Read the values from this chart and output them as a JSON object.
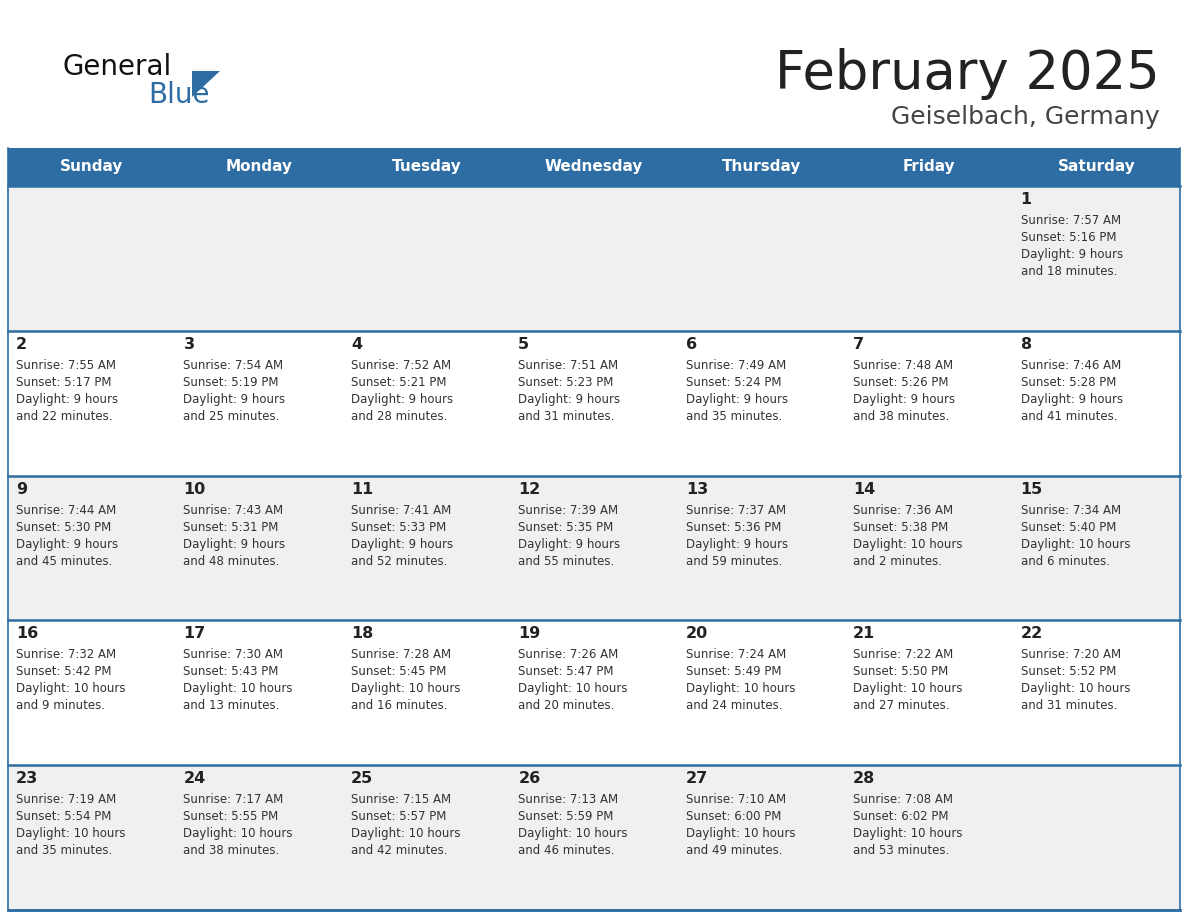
{
  "title": "February 2025",
  "subtitle": "Geiselbach, Germany",
  "days_of_week": [
    "Sunday",
    "Monday",
    "Tuesday",
    "Wednesday",
    "Thursday",
    "Friday",
    "Saturday"
  ],
  "header_bg": "#2E6DA4",
  "header_text": "#FFFFFF",
  "cell_bg_light": "#F0F0F0",
  "cell_bg_white": "#FFFFFF",
  "border_color": "#2E6DA4",
  "day_num_color": "#222222",
  "info_text_color": "#333333",
  "title_color": "#222222",
  "subtitle_color": "#444444",
  "logo_text1": "General",
  "logo_text2": "Blue",
  "logo_triangle_color": "#2E6DA4",
  "logo_black_color": "#111111",
  "calendar_data": [
    [
      {
        "day": null,
        "sunrise": null,
        "sunset": null,
        "daylight_h": null,
        "daylight_m": null
      },
      {
        "day": null,
        "sunrise": null,
        "sunset": null,
        "daylight_h": null,
        "daylight_m": null
      },
      {
        "day": null,
        "sunrise": null,
        "sunset": null,
        "daylight_h": null,
        "daylight_m": null
      },
      {
        "day": null,
        "sunrise": null,
        "sunset": null,
        "daylight_h": null,
        "daylight_m": null
      },
      {
        "day": null,
        "sunrise": null,
        "sunset": null,
        "daylight_h": null,
        "daylight_m": null
      },
      {
        "day": null,
        "sunrise": null,
        "sunset": null,
        "daylight_h": null,
        "daylight_m": null
      },
      {
        "day": 1,
        "sunrise": "7:57 AM",
        "sunset": "5:16 PM",
        "daylight_h": "9 hours",
        "daylight_m": "and 18 minutes."
      }
    ],
    [
      {
        "day": 2,
        "sunrise": "7:55 AM",
        "sunset": "5:17 PM",
        "daylight_h": "9 hours",
        "daylight_m": "and 22 minutes."
      },
      {
        "day": 3,
        "sunrise": "7:54 AM",
        "sunset": "5:19 PM",
        "daylight_h": "9 hours",
        "daylight_m": "and 25 minutes."
      },
      {
        "day": 4,
        "sunrise": "7:52 AM",
        "sunset": "5:21 PM",
        "daylight_h": "9 hours",
        "daylight_m": "and 28 minutes."
      },
      {
        "day": 5,
        "sunrise": "7:51 AM",
        "sunset": "5:23 PM",
        "daylight_h": "9 hours",
        "daylight_m": "and 31 minutes."
      },
      {
        "day": 6,
        "sunrise": "7:49 AM",
        "sunset": "5:24 PM",
        "daylight_h": "9 hours",
        "daylight_m": "and 35 minutes."
      },
      {
        "day": 7,
        "sunrise": "7:48 AM",
        "sunset": "5:26 PM",
        "daylight_h": "9 hours",
        "daylight_m": "and 38 minutes."
      },
      {
        "day": 8,
        "sunrise": "7:46 AM",
        "sunset": "5:28 PM",
        "daylight_h": "9 hours",
        "daylight_m": "and 41 minutes."
      }
    ],
    [
      {
        "day": 9,
        "sunrise": "7:44 AM",
        "sunset": "5:30 PM",
        "daylight_h": "9 hours",
        "daylight_m": "and 45 minutes."
      },
      {
        "day": 10,
        "sunrise": "7:43 AM",
        "sunset": "5:31 PM",
        "daylight_h": "9 hours",
        "daylight_m": "and 48 minutes."
      },
      {
        "day": 11,
        "sunrise": "7:41 AM",
        "sunset": "5:33 PM",
        "daylight_h": "9 hours",
        "daylight_m": "and 52 minutes."
      },
      {
        "day": 12,
        "sunrise": "7:39 AM",
        "sunset": "5:35 PM",
        "daylight_h": "9 hours",
        "daylight_m": "and 55 minutes."
      },
      {
        "day": 13,
        "sunrise": "7:37 AM",
        "sunset": "5:36 PM",
        "daylight_h": "9 hours",
        "daylight_m": "and 59 minutes."
      },
      {
        "day": 14,
        "sunrise": "7:36 AM",
        "sunset": "5:38 PM",
        "daylight_h": "10 hours",
        "daylight_m": "and 2 minutes."
      },
      {
        "day": 15,
        "sunrise": "7:34 AM",
        "sunset": "5:40 PM",
        "daylight_h": "10 hours",
        "daylight_m": "and 6 minutes."
      }
    ],
    [
      {
        "day": 16,
        "sunrise": "7:32 AM",
        "sunset": "5:42 PM",
        "daylight_h": "10 hours",
        "daylight_m": "and 9 minutes."
      },
      {
        "day": 17,
        "sunrise": "7:30 AM",
        "sunset": "5:43 PM",
        "daylight_h": "10 hours",
        "daylight_m": "and 13 minutes."
      },
      {
        "day": 18,
        "sunrise": "7:28 AM",
        "sunset": "5:45 PM",
        "daylight_h": "10 hours",
        "daylight_m": "and 16 minutes."
      },
      {
        "day": 19,
        "sunrise": "7:26 AM",
        "sunset": "5:47 PM",
        "daylight_h": "10 hours",
        "daylight_m": "and 20 minutes."
      },
      {
        "day": 20,
        "sunrise": "7:24 AM",
        "sunset": "5:49 PM",
        "daylight_h": "10 hours",
        "daylight_m": "and 24 minutes."
      },
      {
        "day": 21,
        "sunrise": "7:22 AM",
        "sunset": "5:50 PM",
        "daylight_h": "10 hours",
        "daylight_m": "and 27 minutes."
      },
      {
        "day": 22,
        "sunrise": "7:20 AM",
        "sunset": "5:52 PM",
        "daylight_h": "10 hours",
        "daylight_m": "and 31 minutes."
      }
    ],
    [
      {
        "day": 23,
        "sunrise": "7:19 AM",
        "sunset": "5:54 PM",
        "daylight_h": "10 hours",
        "daylight_m": "and 35 minutes."
      },
      {
        "day": 24,
        "sunrise": "7:17 AM",
        "sunset": "5:55 PM",
        "daylight_h": "10 hours",
        "daylight_m": "and 38 minutes."
      },
      {
        "day": 25,
        "sunrise": "7:15 AM",
        "sunset": "5:57 PM",
        "daylight_h": "10 hours",
        "daylight_m": "and 42 minutes."
      },
      {
        "day": 26,
        "sunrise": "7:13 AM",
        "sunset": "5:59 PM",
        "daylight_h": "10 hours",
        "daylight_m": "and 46 minutes."
      },
      {
        "day": 27,
        "sunrise": "7:10 AM",
        "sunset": "6:00 PM",
        "daylight_h": "10 hours",
        "daylight_m": "and 49 minutes."
      },
      {
        "day": 28,
        "sunrise": "7:08 AM",
        "sunset": "6:02 PM",
        "daylight_h": "10 hours",
        "daylight_m": "and 53 minutes."
      },
      {
        "day": null,
        "sunrise": null,
        "sunset": null,
        "daylight_h": null,
        "daylight_m": null
      }
    ]
  ]
}
